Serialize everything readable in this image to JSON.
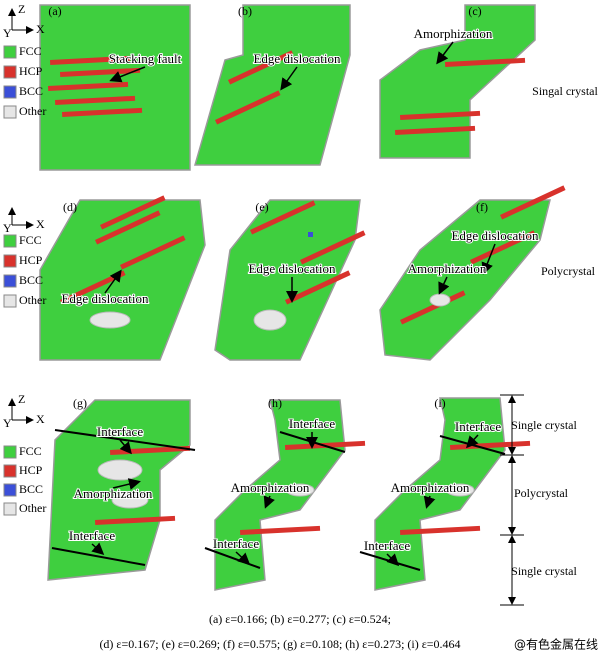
{
  "rows": [
    {
      "axes": {
        "up": "Z",
        "right": "X",
        "depth": "Y"
      },
      "legend": [
        "FCC",
        "HCP",
        "BCC",
        "Other"
      ],
      "panels": [
        {
          "label": "(a)",
          "annotations": [
            "Stacking fault"
          ]
        },
        {
          "label": "(b)",
          "annotations": [
            "Edge dislocation"
          ]
        },
        {
          "label": "(c)",
          "annotations": [
            "Amorphization"
          ]
        }
      ],
      "side_labels": [
        "Singal crystal"
      ]
    },
    {
      "axes": {
        "right": "X",
        "depth": "Y"
      },
      "legend": [
        "FCC",
        "HCP",
        "BCC",
        "Other"
      ],
      "panels": [
        {
          "label": "(d)",
          "annotations": [
            "Edge dislocation"
          ]
        },
        {
          "label": "(e)",
          "annotations": [
            "Edge dislocation"
          ]
        },
        {
          "label": "(f)",
          "annotations": [
            "Edge dislocation",
            "Amorphization"
          ]
        }
      ],
      "side_labels": [
        "Polycrystal"
      ]
    },
    {
      "axes": {
        "up": "Z",
        "right": "X",
        "depth": "Y"
      },
      "legend": [
        "FCC",
        "HCP",
        "BCC",
        "Other"
      ],
      "panels": [
        {
          "label": "(g)",
          "annotations": [
            "Interface",
            "Amorphization",
            "Interface"
          ]
        },
        {
          "label": "(h)",
          "annotations": [
            "Interface",
            "Amorphization",
            "Interface"
          ]
        },
        {
          "label": "(i)",
          "annotations": [
            "Interface",
            "Amorphization",
            "Interface"
          ]
        }
      ],
      "side_labels": [
        "Single crystal",
        "Polycrystal",
        "Single crystal"
      ]
    }
  ],
  "caption": [
    "(a) ε=0.166;  (b) ε=0.277;  (c) ε=0.524;",
    "(d) ε=0.167; (e) ε=0.269; (f) ε=0.575; (g) ε=0.108; (h) ε=0.273; (i) ε=0.464"
  ],
  "watermark": "@有色金属在线"
}
